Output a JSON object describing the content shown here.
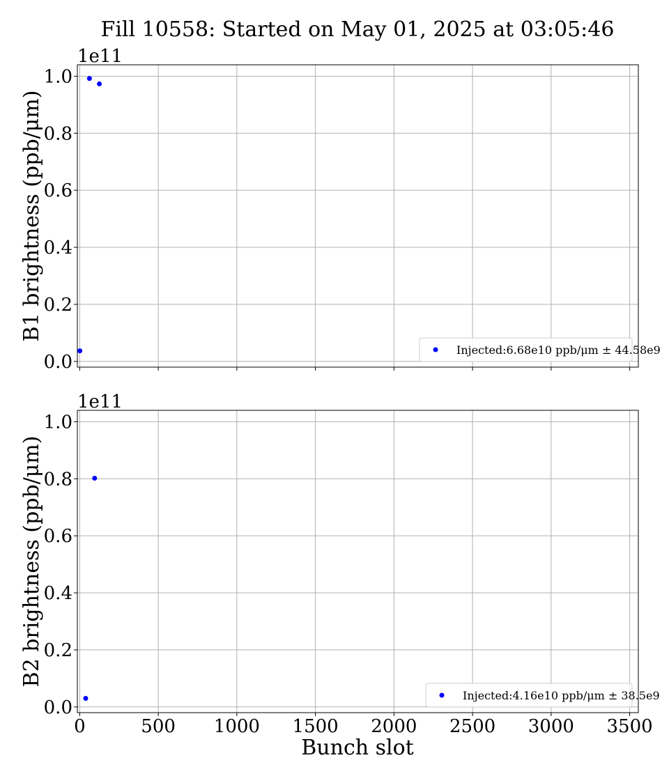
{
  "figure": {
    "title": "Fill 10558: Started on May 01, 2025 at 03:05:46",
    "xlabel": "Bunch slot"
  },
  "chart_data": [
    {
      "type": "scatter",
      "ylabel": "B1 brightness (ppb/μm)",
      "offset_text": "1e11",
      "xlim": [
        -15,
        3555
      ],
      "ylim": [
        -2000000000.0,
        104000000000.0
      ],
      "x_ticks": [
        0,
        500,
        1000,
        1500,
        2000,
        2500,
        3000,
        3500
      ],
      "x_tick_labels_visible": false,
      "y_ticks": [
        0,
        20000000000.0,
        40000000000.0,
        60000000000.0,
        80000000000.0,
        100000000000.0
      ],
      "y_tick_labels": [
        "0.0",
        "0.2",
        "0.4",
        "0.6",
        "0.8",
        "1.0"
      ],
      "grid": true,
      "legend_position": "lower-right",
      "marker_color": "#0000ff",
      "series": [
        {
          "name": "Injected:6.68e10 ppb/μm ± 44.58e9",
          "points": [
            [
              1,
              3700000000.0
            ],
            [
              62,
              99200000000.0
            ],
            [
              125,
              97300000000.0
            ]
          ]
        }
      ]
    },
    {
      "type": "scatter",
      "ylabel": "B2 brightness (ppb/μm)",
      "offset_text": "1e11",
      "xlim": [
        -15,
        3555
      ],
      "ylim": [
        -2000000000.0,
        104000000000.0
      ],
      "x_ticks": [
        0,
        500,
        1000,
        1500,
        2000,
        2500,
        3000,
        3500
      ],
      "x_tick_labels": [
        "0",
        "500",
        "1000",
        "1500",
        "2000",
        "2500",
        "3000",
        "3500"
      ],
      "x_tick_labels_visible": true,
      "y_ticks": [
        0,
        20000000000.0,
        40000000000.0,
        60000000000.0,
        80000000000.0,
        100000000000.0
      ],
      "y_tick_labels": [
        "0.0",
        "0.2",
        "0.4",
        "0.6",
        "0.8",
        "1.0"
      ],
      "grid": true,
      "legend_position": "lower-right",
      "marker_color": "#0000ff",
      "series": [
        {
          "name": "Injected:4.16e10 ppb/μm ± 38.5e9",
          "points": [
            [
              38,
              3000000000.0
            ],
            [
              95,
              80200000000.0
            ]
          ]
        }
      ]
    }
  ]
}
